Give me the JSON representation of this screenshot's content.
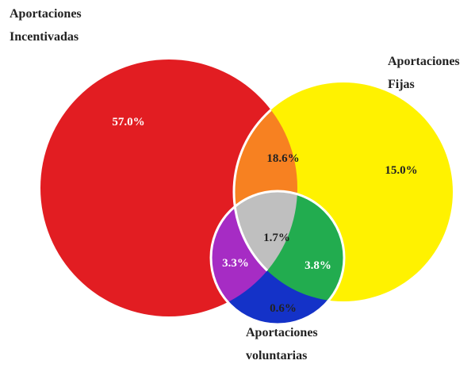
{
  "sets": {
    "incentivadas": {
      "label_line1": "Aportaciones",
      "label_line2": "Incentivadas",
      "color": "#e21d22"
    },
    "fijas": {
      "label_line1": "Aportaciones",
      "label_line2": "Fijas",
      "color": "#fff200"
    },
    "voluntarias": {
      "label_line1": "Aportaciones",
      "label_line2": "voluntarias",
      "color": "#1432c8"
    }
  },
  "regions": {
    "only_incentivadas": {
      "value": "57.0%",
      "color": "#e21d22",
      "text_color": "#ffffff"
    },
    "only_fijas": {
      "value": "15.0%",
      "color": "#fff200",
      "text_color": "#222222"
    },
    "only_voluntarias": {
      "value": "0.6%",
      "color": "#1432c8",
      "text_color": "#222222"
    },
    "incentivadas_fijas": {
      "value": "18.6%",
      "color": "#f78121",
      "text_color": "#222222"
    },
    "incentivadas_voluntarias": {
      "value": "3.3%",
      "color": "#a62cc4",
      "text_color": "#ffffff"
    },
    "fijas_voluntarias": {
      "value": "3.8%",
      "color": "#22ac4f",
      "text_color": "#ffffff"
    },
    "all_three": {
      "value": "1.7%",
      "color": "#bfbfbf",
      "text_color": "#222222"
    }
  },
  "outline_color": "#ffffff"
}
